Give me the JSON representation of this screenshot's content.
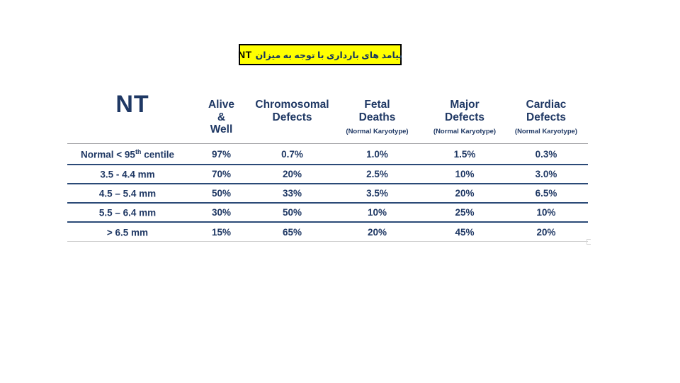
{
  "colors": {
    "text_navy": "#1f3864",
    "title_background": "#ffff00",
    "title_border": "#000000",
    "row_separator": "#2b4a77",
    "header_separator": "#9e9ea2",
    "bottom_separator": "#d3d3d3",
    "page_background": "#ffffff"
  },
  "title": {
    "text_fa": "پیامد های بارداری با توجه به میزان",
    "text_en": "NT"
  },
  "table": {
    "columns": [
      {
        "lines": [
          "NT"
        ],
        "sub": ""
      },
      {
        "lines": [
          "Alive",
          "&",
          "Well"
        ],
        "sub": ""
      },
      {
        "lines": [
          "Chromosomal",
          "Defects"
        ],
        "sub": ""
      },
      {
        "lines": [
          "Fetal",
          "Deaths"
        ],
        "sub": "(Normal Karyotype)"
      },
      {
        "lines": [
          "Major",
          "Defects"
        ],
        "sub": "(Normal Karyotype)"
      },
      {
        "lines": [
          "Cardiac",
          "Defects"
        ],
        "sub": "(Normal Karyotype)"
      }
    ],
    "rows": [
      {
        "label": "Normal < 95",
        "label_sup": "th",
        "label_rest": " centile",
        "values": [
          "97%",
          "0.7%",
          "1.0%",
          "1.5%",
          "0.3%"
        ]
      },
      {
        "label": "3.5 - 4.4 mm",
        "label_sup": "",
        "label_rest": "",
        "values": [
          "70%",
          "20%",
          "2.5%",
          "10%",
          "3.0%"
        ]
      },
      {
        "label": "4.5 – 5.4 mm",
        "label_sup": "",
        "label_rest": "",
        "values": [
          "50%",
          "33%",
          "3.5%",
          "20%",
          "6.5%"
        ]
      },
      {
        "label": "5.5 – 6.4 mm",
        "label_sup": "",
        "label_rest": "",
        "values": [
          "30%",
          "50%",
          "10%",
          "25%",
          "10%"
        ]
      },
      {
        "label": "> 6.5 mm",
        "label_sup": "",
        "label_rest": "",
        "values": [
          "15%",
          "65%",
          "20%",
          "45%",
          "20%"
        ]
      }
    ]
  }
}
